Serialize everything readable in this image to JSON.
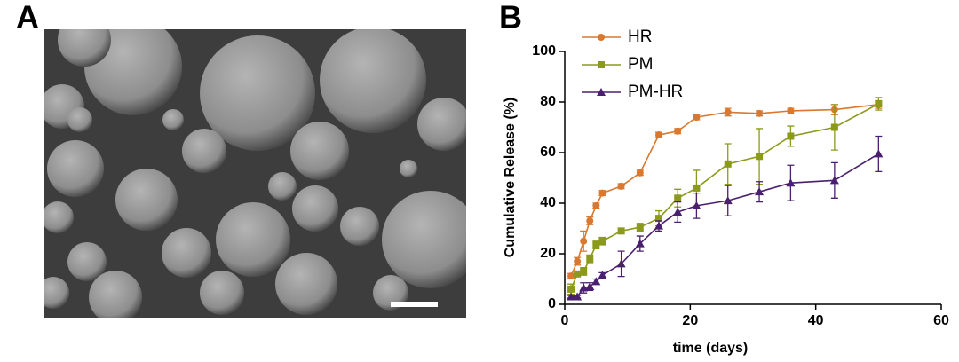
{
  "panels": {
    "a": "A",
    "b": "B"
  },
  "chart_data": {
    "type": "line",
    "xlabel": "time (days)",
    "ylabel": "Cumulative Release (%)",
    "xlim": [
      0,
      60
    ],
    "xticks": [
      0,
      20,
      40,
      60
    ],
    "ylim": [
      0,
      100
    ],
    "yticks": [
      0,
      20,
      40,
      60,
      80,
      100
    ],
    "legend": "top-left",
    "x": [
      1,
      2,
      3,
      4,
      5,
      6,
      9,
      12,
      15,
      18,
      21,
      26,
      31,
      36,
      43,
      50
    ],
    "series": [
      {
        "name": "HR",
        "color": "#d9782e",
        "marker": "circle",
        "values": [
          11.2,
          17,
          25,
          33,
          39,
          44,
          46.7,
          52,
          67,
          68.5,
          74,
          76,
          75.5,
          76.5,
          77,
          79
        ],
        "errors": [
          1,
          1.5,
          4,
          1.5,
          1,
          1,
          1,
          1,
          1,
          1,
          1,
          1.5,
          1,
          1,
          2,
          1.5
        ]
      },
      {
        "name": "PM",
        "color": "#8c9a1b",
        "marker": "square",
        "values": [
          6,
          12,
          13,
          18,
          23.5,
          25,
          29,
          30.5,
          34,
          42,
          46,
          55.5,
          58.5,
          66.5,
          70,
          79.3
        ],
        "errors": [
          2,
          1,
          1.5,
          1.5,
          1.5,
          1.5,
          1,
          1.5,
          3,
          3.5,
          7,
          8,
          11,
          4,
          9,
          2.5
        ]
      },
      {
        "name": "PM-HR",
        "color": "#4b1f6f",
        "marker": "triangle",
        "values": [
          3,
          3,
          6.5,
          7,
          9,
          11.5,
          16,
          24,
          31,
          36.5,
          39,
          41,
          44.5,
          48,
          49,
          59.5
        ],
        "errors": [
          0.5,
          0.5,
          2,
          1.5,
          1,
          1,
          5,
          3,
          2,
          4,
          5,
          6,
          4,
          7,
          7,
          7
        ]
      }
    ]
  }
}
